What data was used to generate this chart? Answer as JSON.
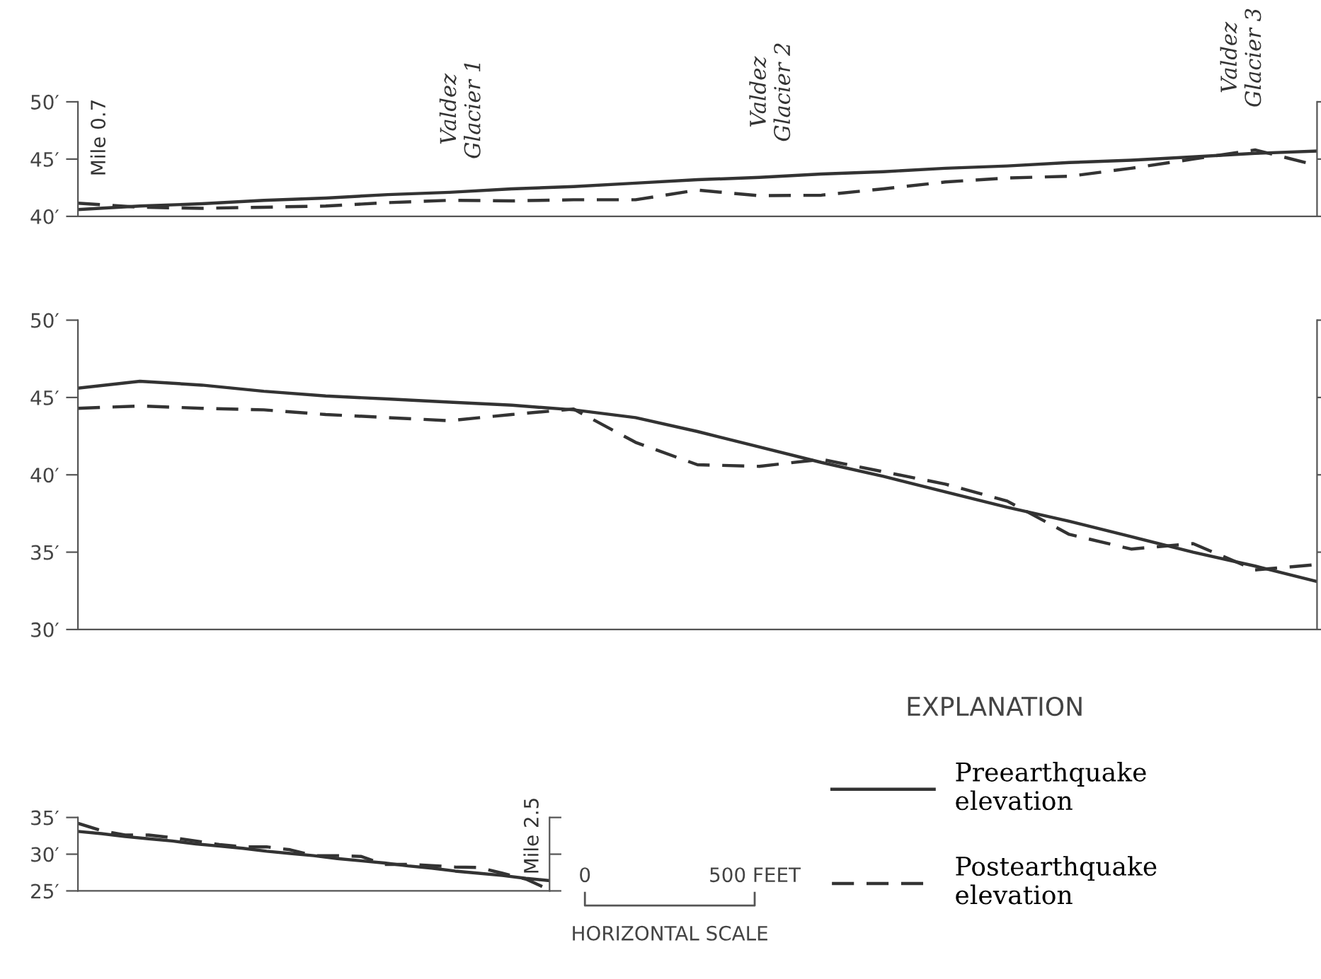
{
  "chart_data": [
    {
      "type": "line",
      "categories": [
        null,
        null,
        null,
        null,
        null,
        null,
        null,
        null,
        null,
        null,
        null,
        null,
        null,
        null,
        null,
        null,
        null,
        null,
        null,
        null,
        null
      ],
      "ylim": [
        40,
        50
      ],
      "yticks": [
        {
          "value": 40,
          "label": "40′"
        },
        {
          "value": 45,
          "label": "45′"
        },
        {
          "value": 50,
          "label": "50′"
        }
      ],
      "tick_labels": "y",
      "series": [
        {
          "color": "#333333",
          "line_style": "solid",
          "values": [
            40.6,
            40.9,
            41.1,
            41.4,
            41.6,
            41.9,
            42.1,
            42.4,
            42.6,
            42.9,
            43.2,
            43.4,
            43.7,
            43.9,
            44.2,
            44.4,
            44.7,
            44.9,
            45.2,
            45.5,
            45.7
          ]
        },
        {
          "color": "#333333",
          "line_style": "dashed",
          "values": [
            41.15,
            40.8,
            40.7,
            40.8,
            40.9,
            41.2,
            41.4,
            41.35,
            41.45,
            41.45,
            42.3,
            41.8,
            41.85,
            42.4,
            43.0,
            43.35,
            43.5,
            44.2,
            45.0,
            45.8,
            44.45
          ]
        }
      ],
      "annotations": [
        "Mile 0.7",
        "Valdez\nGlacier 1",
        "Valdez\nGlacier 2",
        "Valdez\nGlacier 3"
      ]
    },
    {
      "type": "line",
      "categories": [
        null,
        null,
        null,
        null,
        null,
        null,
        null,
        null,
        null,
        null,
        null,
        null,
        null,
        null,
        null,
        null,
        null,
        null,
        null,
        null,
        null
      ],
      "ylim": [
        30,
        50
      ],
      "yticks": [
        {
          "value": 30,
          "label": "30′"
        },
        {
          "value": 35,
          "label": "35′"
        },
        {
          "value": 40,
          "label": "40′"
        },
        {
          "value": 45,
          "label": "45′"
        },
        {
          "value": 50,
          "label": "50′"
        }
      ],
      "tick_labels": "y",
      "series": [
        {
          "color": "#333333",
          "line_style": "solid",
          "values": [
            45.6,
            46.05,
            45.8,
            45.4,
            45.1,
            44.9,
            44.7,
            44.5,
            44.2,
            43.7,
            42.8,
            41.8,
            40.8,
            39.9,
            38.9,
            37.9,
            37.0,
            36.0,
            35.0,
            34.1,
            33.1
          ]
        },
        {
          "color": "#333333",
          "line_style": "dashed",
          "values": [
            44.3,
            44.45,
            44.3,
            44.2,
            43.9,
            43.7,
            43.5,
            43.9,
            44.25,
            42.1,
            40.65,
            40.55,
            41.0,
            40.2,
            39.4,
            38.3,
            36.15,
            35.2,
            35.55,
            33.85,
            34.2
          ]
        }
      ]
    },
    {
      "type": "line",
      "categories": [
        null,
        null,
        null,
        null,
        null,
        null,
        null,
        null,
        null,
        null,
        null,
        null,
        null,
        null,
        null,
        null,
        null,
        null,
        null,
        null,
        null
      ],
      "ylim": [
        25,
        35
      ],
      "yticks": [
        {
          "value": 25,
          "label": "25′"
        },
        {
          "value": 30,
          "label": "30′"
        },
        {
          "value": 35,
          "label": "35′"
        }
      ],
      "tick_labels": "y",
      "legend": "right",
      "legend_title": "EXPLANATION",
      "series": [
        {
          "name": "Preearthquake\nelevation",
          "color": "#333333",
          "line_style": "solid",
          "values": [
            33.1,
            32.8,
            32.4,
            32.1,
            31.8,
            31.4,
            31.1,
            30.8,
            30.4,
            30.1,
            29.8,
            29.4,
            29.1,
            28.8,
            28.4,
            28.1,
            27.7,
            27.4,
            27.1,
            26.7,
            26.4
          ]
        },
        {
          "name": "Postearthquake\nelevation",
          "color": "#333333",
          "line_style": "dashed",
          "values": [
            34.2,
            33.2,
            32.6,
            32.6,
            32.25,
            31.8,
            31.3,
            31.0,
            31.0,
            30.6,
            29.8,
            29.8,
            29.7,
            28.6,
            28.6,
            28.45,
            28.25,
            28.2,
            27.4,
            26.6,
            25.15
          ]
        }
      ],
      "annotations": [
        "Mile 2.5",
        "0",
        "500 FEET",
        "HORIZONTAL SCALE"
      ]
    }
  ]
}
